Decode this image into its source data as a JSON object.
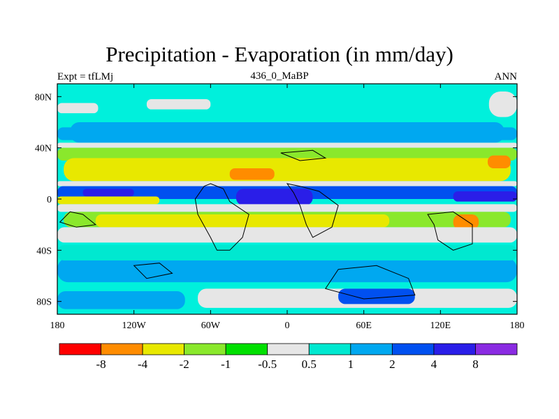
{
  "header": {
    "title": "Precipitation - Evaporation (in mm/day)",
    "left_label": "Expt = tfLMj",
    "center_label": "436_0_MaBP",
    "right_label": "ANN"
  },
  "chart_data": {
    "type": "heatmap",
    "title": "Precipitation - Evaporation (in mm/day)",
    "x_ticks": [
      {
        "value": -180,
        "label": "180"
      },
      {
        "value": -120,
        "label": "120W"
      },
      {
        "value": -60,
        "label": "60W"
      },
      {
        "value": 0,
        "label": "0"
      },
      {
        "value": 60,
        "label": "60E"
      },
      {
        "value": 120,
        "label": "120E"
      },
      {
        "value": 180,
        "label": "180"
      }
    ],
    "y_ticks": [
      {
        "value": 80,
        "label": "80N"
      },
      {
        "value": 40,
        "label": "40N"
      },
      {
        "value": 0,
        "label": "0"
      },
      {
        "value": -40,
        "label": "40S"
      },
      {
        "value": -80,
        "label": "80S"
      }
    ],
    "xlim": [
      -180,
      180
    ],
    "ylim": [
      -90,
      90
    ],
    "levels": [
      "-8",
      "-4",
      "-2",
      "-1",
      "-0.5",
      "0.5",
      "1",
      "2",
      "4",
      "8"
    ],
    "colors": [
      "#ff0000",
      "#ff8c00",
      "#e8e800",
      "#8ae82c",
      "#00e000",
      "#e6e6e6",
      "#00e8d0",
      "#00a8f0",
      "#0050f0",
      "#2a1ee8",
      "#8a2be2"
    ],
    "background_color": "#00f0dc",
    "regions": [
      {
        "name": "arctic-gray-west",
        "lon": [
          -180,
          -148
        ],
        "lat": [
          67,
          75
        ],
        "bin": 5
      },
      {
        "name": "arctic-gray-east",
        "lon": [
          158,
          180
        ],
        "lat": [
          64,
          84
        ],
        "bin": 5
      },
      {
        "name": "arctic-gray-mid",
        "lon": [
          -110,
          -60
        ],
        "lat": [
          70,
          78
        ],
        "bin": 5
      },
      {
        "name": "storm-track-north",
        "lon": [
          -180,
          180
        ],
        "lat": [
          46,
          56
        ],
        "bin": 7
      },
      {
        "name": "storm-track-north-lightblue",
        "lon": [
          -170,
          170
        ],
        "lat": [
          44,
          60
        ],
        "bin": 7
      },
      {
        "name": "north-gray-band",
        "lon": [
          -180,
          180
        ],
        "lat": [
          40,
          44
        ],
        "bin": 5
      },
      {
        "name": "north-green-band",
        "lon": [
          -180,
          180
        ],
        "lat": [
          30,
          40
        ],
        "bin": 3
      },
      {
        "name": "north-subtropics-yellow",
        "lon": [
          -175,
          175
        ],
        "lat": [
          14,
          32
        ],
        "bin": 2
      },
      {
        "name": "north-dry-orange",
        "lon": [
          -45,
          -10
        ],
        "lat": [
          15,
          24
        ],
        "bin": 1
      },
      {
        "name": "north-dry-orange-east",
        "lon": [
          157,
          175
        ],
        "lat": [
          24,
          34
        ],
        "bin": 1
      },
      {
        "name": "itcz-gray",
        "lon": [
          -180,
          180
        ],
        "lat": [
          10,
          14
        ],
        "bin": 5
      },
      {
        "name": "itcz-blue",
        "lon": [
          -180,
          180
        ],
        "lat": [
          0,
          10
        ],
        "bin": 8
      },
      {
        "name": "itcz-deep",
        "lon": [
          -160,
          -120
        ],
        "lat": [
          2,
          8
        ],
        "bin": 9
      },
      {
        "name": "itcz-deep-east",
        "lon": [
          -40,
          20
        ],
        "lat": [
          -5,
          8
        ],
        "bin": 9
      },
      {
        "name": "itcz-deep-pacific",
        "lon": [
          130,
          180
        ],
        "lat": [
          -2,
          6
        ],
        "bin": 9
      },
      {
        "name": "equator-yellow-pac",
        "lon": [
          -180,
          -100
        ],
        "lat": [
          -4,
          2
        ],
        "bin": 2
      },
      {
        "name": "south-gray",
        "lon": [
          -180,
          180
        ],
        "lat": [
          -10,
          -4
        ],
        "bin": 5
      },
      {
        "name": "south-green",
        "lon": [
          -175,
          175
        ],
        "lat": [
          -22,
          -10
        ],
        "bin": 3
      },
      {
        "name": "south-subtropics-yellow",
        "lon": [
          -150,
          80
        ],
        "lat": [
          -22,
          -12
        ],
        "bin": 2
      },
      {
        "name": "south-dry-orange",
        "lon": [
          130,
          150
        ],
        "lat": [
          -24,
          -12
        ],
        "bin": 1
      },
      {
        "name": "south-gray-2",
        "lon": [
          -180,
          180
        ],
        "lat": [
          -34,
          -22
        ],
        "bin": 5
      },
      {
        "name": "southern-ocean-blue",
        "lon": [
          -180,
          180
        ],
        "lat": [
          -65,
          -46
        ],
        "bin": 7
      },
      {
        "name": "southern-ocean-lightblue",
        "lon": [
          -180,
          180
        ],
        "lat": [
          -48,
          -36
        ],
        "bin": 6
      },
      {
        "name": "antarctic-gray",
        "lon": [
          -70,
          180
        ],
        "lat": [
          -85,
          -70
        ],
        "bin": 5
      },
      {
        "name": "antarctic-blue",
        "lon": [
          -180,
          -80
        ],
        "lat": [
          -86,
          -72
        ],
        "bin": 7
      },
      {
        "name": "antarctic-deep",
        "lon": [
          40,
          100
        ],
        "lat": [
          -82,
          -70
        ],
        "bin": 8
      }
    ]
  }
}
